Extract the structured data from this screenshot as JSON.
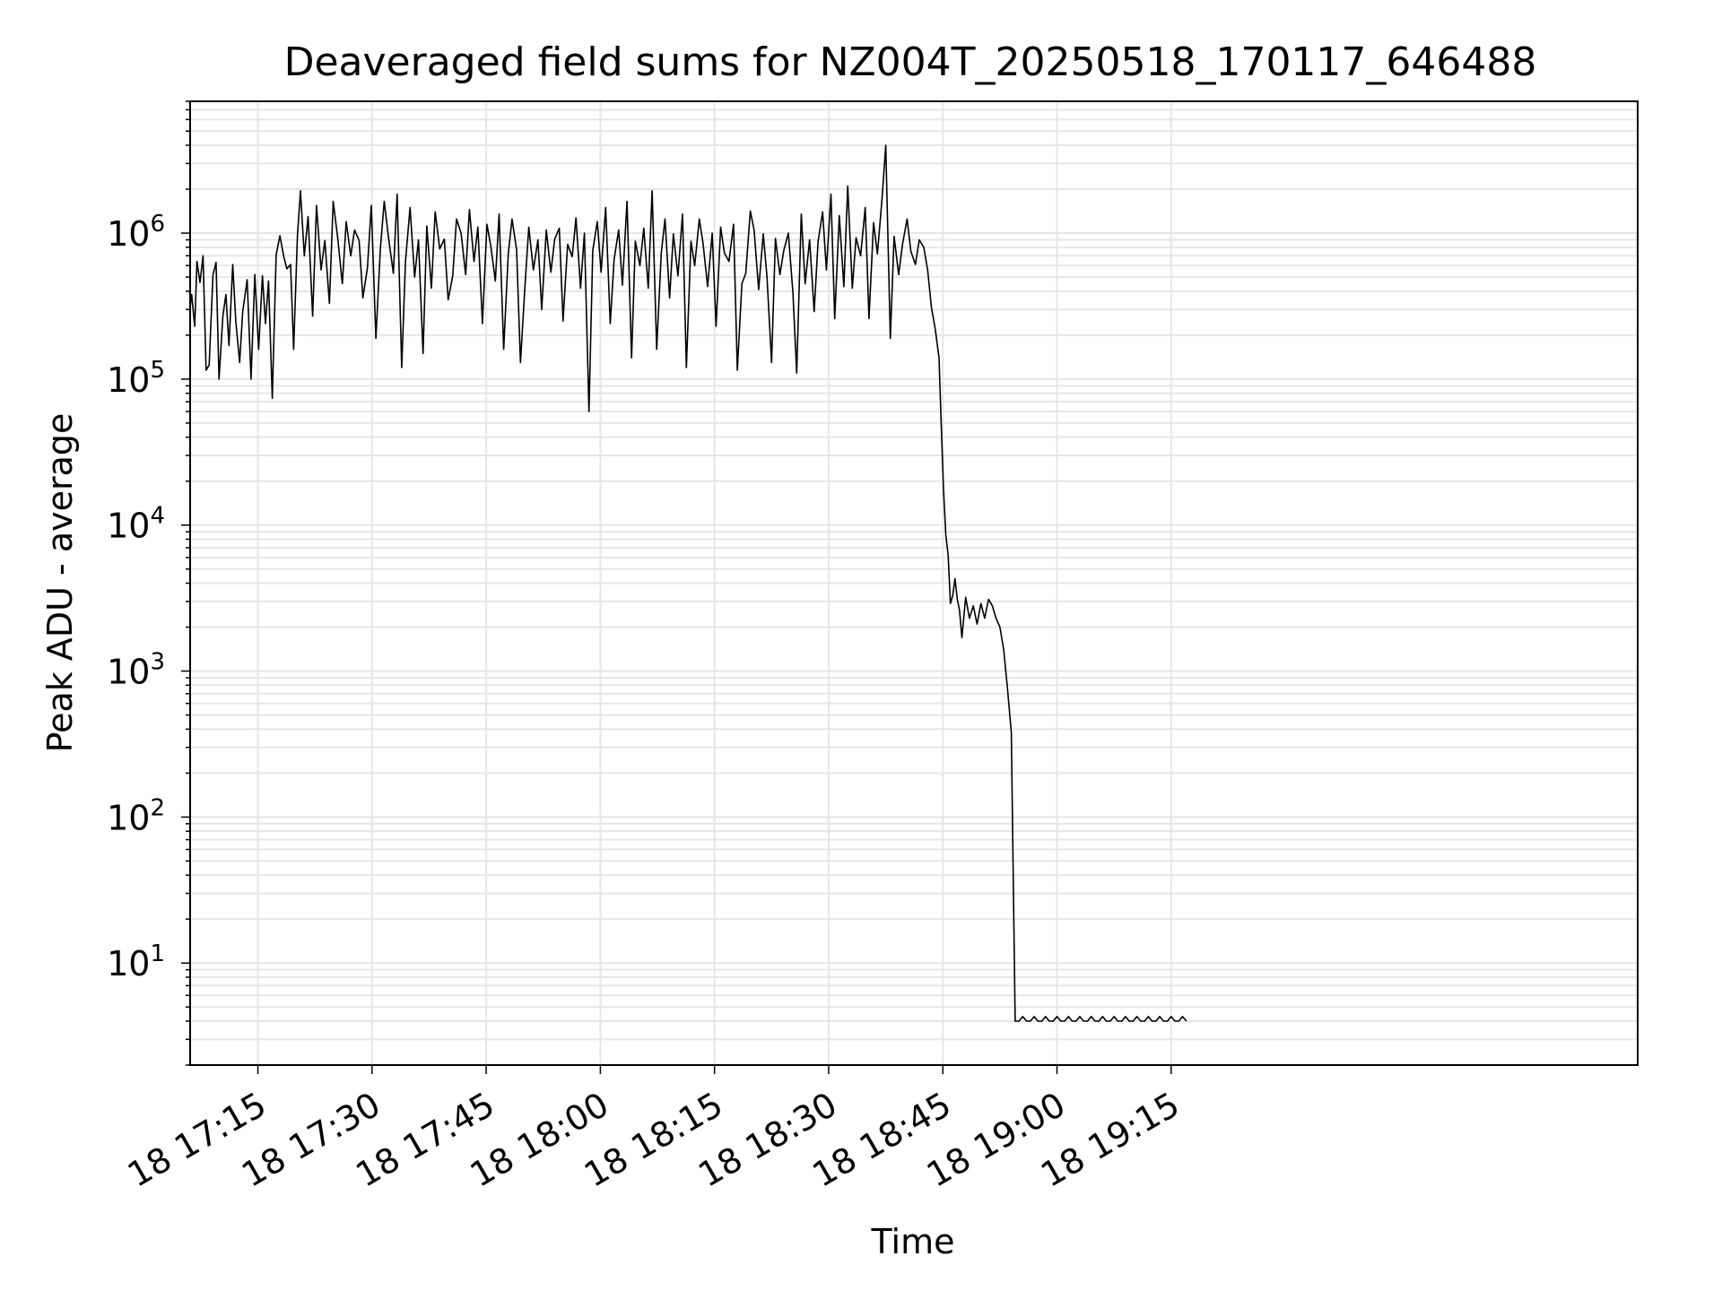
{
  "chart_data": {
    "type": "line",
    "title": "Deaveraged field sums for NZ004T_20250518_170117_646488",
    "xlabel": "Time",
    "ylabel": "Peak ADU - average",
    "yscale": "log",
    "xlim_minutes_after_17_00": [
      6.1,
      196.3
    ],
    "ylim": [
      2,
      8000000
    ],
    "grid": "on",
    "line_color": "#000000",
    "grid_color": "#e6e6e6",
    "x_ticks": [
      {
        "minutes": 15,
        "label": "18 17:15"
      },
      {
        "minutes": 30,
        "label": "18 17:30"
      },
      {
        "minutes": 45,
        "label": "18 17:45"
      },
      {
        "minutes": 60,
        "label": "18 18:00"
      },
      {
        "minutes": 75,
        "label": "18 18:15"
      },
      {
        "minutes": 90,
        "label": "18 18:30"
      },
      {
        "minutes": 105,
        "label": "18 18:45"
      },
      {
        "minutes": 120,
        "label": "18 19:00"
      },
      {
        "minutes": 135,
        "label": "18 19:15"
      }
    ],
    "y_ticks": [
      {
        "exp": 1,
        "base": "10",
        "sup": "1"
      },
      {
        "exp": 2,
        "base": "10",
        "sup": "2"
      },
      {
        "exp": 3,
        "base": "10",
        "sup": "3"
      },
      {
        "exp": 4,
        "base": "10",
        "sup": "4"
      },
      {
        "exp": 5,
        "base": "10",
        "sup": "5"
      },
      {
        "exp": 6,
        "base": "10",
        "sup": "6"
      }
    ],
    "series": [
      {
        "x_minutes_after_17_00": [
          1.2,
          1.4,
          1.7,
          2.0,
          2.3,
          2.6,
          2.9,
          3.2,
          3.6,
          3.9,
          4.3,
          4.6,
          4.9,
          5.2,
          5.6,
          6.1,
          6.3,
          6.7,
          7.0,
          7.4,
          7.8,
          8.2,
          8.6,
          9.1,
          9.5,
          9.9,
          10.4,
          10.8,
          11.2,
          11.7,
          12.1,
          12.6,
          13.0,
          13.6,
          14.1,
          14.6,
          15.1,
          15.6,
          16.0,
          16.4,
          16.9,
          17.4,
          17.9,
          18.4,
          18.8,
          19.3,
          19.7,
          20.2,
          20.6,
          21.1,
          21.6,
          22.2,
          22.7,
          23.3,
          23.8,
          24.4,
          24.9,
          25.5,
          26.1,
          26.6,
          27.2,
          27.7,
          28.3,
          28.8,
          29.4,
          29.9,
          30.5,
          31.1,
          31.6,
          32.2,
          32.8,
          33.3,
          33.9,
          34.4,
          35.0,
          35.6,
          36.1,
          36.7,
          37.2,
          37.8,
          38.3,
          38.9,
          39.5,
          40.0,
          40.6,
          41.1,
          41.7,
          42.3,
          42.8,
          43.4,
          43.9,
          44.5,
          45.1,
          45.6,
          46.2,
          46.7,
          47.3,
          47.9,
          48.4,
          49.0,
          49.5,
          50.1,
          50.6,
          51.2,
          51.8,
          52.3,
          52.9,
          53.5,
          54.0,
          54.6,
          55.1,
          55.7,
          56.3,
          56.8,
          57.4,
          57.9,
          58.5,
          59.0,
          59.6,
          60.1,
          60.7,
          61.3,
          61.8,
          62.4,
          62.9,
          63.5,
          64.1,
          64.6,
          65.2,
          65.7,
          66.3,
          66.8,
          67.4,
          68.0,
          68.5,
          69.1,
          69.6,
          70.2,
          70.8,
          71.3,
          71.9,
          72.4,
          73.0,
          73.5,
          74.1,
          74.7,
          75.2,
          75.8,
          76.3,
          76.9,
          77.5,
          78.0,
          78.6,
          79.1,
          79.7,
          80.2,
          80.8,
          81.4,
          81.9,
          82.5,
          83.0,
          83.6,
          84.1,
          84.7,
          85.3,
          85.8,
          86.4,
          86.9,
          87.5,
          88.1,
          88.6,
          89.2,
          89.7,
          90.3,
          90.8,
          91.4,
          92.0,
          92.5,
          93.1,
          93.6,
          94.2,
          94.8,
          95.3,
          95.9,
          96.4,
          97.0,
          97.5,
          98.1,
          98.6,
          99.2,
          99.7,
          100.3,
          100.8,
          101.4,
          101.9,
          102.5,
          103.0,
          103.5,
          104.0,
          104.5,
          104.8,
          105.1,
          105.4,
          105.7,
          106.0,
          106.3,
          106.6,
          106.9,
          107.2,
          107.5,
          108.0,
          108.5,
          109.0,
          109.5,
          110.0,
          110.5,
          111.0,
          111.5,
          112.0,
          112.5,
          113.0,
          113.5,
          114.0,
          114.5,
          115.0,
          115.5,
          116.0,
          116.5,
          117.0,
          117.5,
          118.0,
          118.5,
          119.0,
          119.5,
          120.0,
          120.5,
          121.0,
          121.5,
          122.0,
          122.5,
          123.0,
          123.5,
          124.0,
          124.5,
          125.0,
          125.5,
          126.0,
          126.5,
          127.0,
          127.5,
          128.0,
          128.5,
          129.0,
          129.5,
          130.0,
          130.5,
          131.0,
          131.5,
          132.0,
          132.5,
          133.0,
          133.5,
          134.0,
          134.5,
          135.0,
          135.5,
          136.0,
          136.5,
          137.0
        ],
        "values": [
          420000,
          1200000,
          560000,
          1600000,
          730000,
          1150000,
          650000,
          920000,
          810000,
          680000,
          390000,
          1050000,
          550000,
          88000,
          110000,
          310000,
          380000,
          230000,
          640000,
          460000,
          700000,
          115000,
          125000,
          520000,
          630000,
          100000,
          270000,
          380000,
          170000,
          610000,
          250000,
          130000,
          290000,
          480000,
          100000,
          520000,
          160000,
          510000,
          240000,
          470000,
          74000,
          710000,
          960000,
          690000,
          570000,
          610000,
          160000,
          950000,
          1950000,
          700000,
          1300000,
          270000,
          1550000,
          560000,
          890000,
          330000,
          1650000,
          920000,
          450000,
          1200000,
          700000,
          1050000,
          890000,
          360000,
          580000,
          1550000,
          190000,
          780000,
          1650000,
          900000,
          530000,
          1850000,
          120000,
          640000,
          1500000,
          500000,
          900000,
          150000,
          1120000,
          420000,
          1400000,
          780000,
          910000,
          350000,
          510000,
          1250000,
          1000000,
          520000,
          1450000,
          640000,
          1100000,
          240000,
          1150000,
          820000,
          470000,
          1350000,
          160000,
          720000,
          1250000,
          770000,
          130000,
          440000,
          1100000,
          560000,
          900000,
          300000,
          1050000,
          540000,
          910000,
          1080000,
          250000,
          840000,
          690000,
          1270000,
          420000,
          1000000,
          60000,
          760000,
          1200000,
          540000,
          1500000,
          240000,
          660000,
          1050000,
          440000,
          1650000,
          140000,
          880000,
          600000,
          1080000,
          420000,
          1950000,
          160000,
          730000,
          1250000,
          360000,
          990000,
          510000,
          1350000,
          120000,
          880000,
          600000,
          1250000,
          850000,
          430000,
          1000000,
          230000,
          1100000,
          730000,
          640000,
          1150000,
          115000,
          450000,
          530000,
          1420000,
          1050000,
          410000,
          990000,
          500000,
          130000,
          920000,
          520000,
          760000,
          1000000,
          390000,
          110000,
          1350000,
          450000,
          900000,
          290000,
          870000,
          1400000,
          560000,
          1850000,
          260000,
          1320000,
          430000,
          2100000,
          420000,
          930000,
          700000,
          1500000,
          260000,
          1180000,
          720000,
          1700000,
          4000000,
          190000,
          950000,
          520000,
          840000,
          1250000,
          750000,
          610000,
          900000,
          800000,
          560000,
          310000,
          220000,
          140000,
          48000,
          17000,
          8500,
          6200,
          2900,
          3300,
          4300,
          3100,
          2600,
          1700,
          3200,
          2300,
          2800,
          2100,
          2900,
          2300,
          3100,
          2800,
          2300,
          2000,
          1400,
          750,
          380,
          4.0,
          4.0,
          4.3,
          4.0,
          4.0,
          4.3,
          4.0,
          4.0,
          4.3,
          4.0,
          4.0,
          4.3,
          4.0,
          4.0,
          4.3,
          4.0,
          4.0,
          4.3,
          4.0,
          4.0,
          4.3,
          4.0,
          4.0,
          4.3,
          4.0,
          4.0,
          4.3,
          4.0,
          4.0,
          4.3,
          4.0,
          4.0,
          4.3,
          4.0,
          4.0,
          4.3,
          4.0,
          4.0,
          4.3,
          4.0,
          4.0,
          4.3,
          4.0,
          4.0,
          4.3,
          4.0,
          4.0,
          4.3,
          4.0,
          4.0,
          4.3,
          4.0,
          4.0,
          4.3,
          4.0,
          4.0,
          4.3,
          4.0,
          4.0,
          4.3,
          4.0,
          4.0,
          4.3,
          4.0,
          4.0
        ]
      }
    ]
  }
}
